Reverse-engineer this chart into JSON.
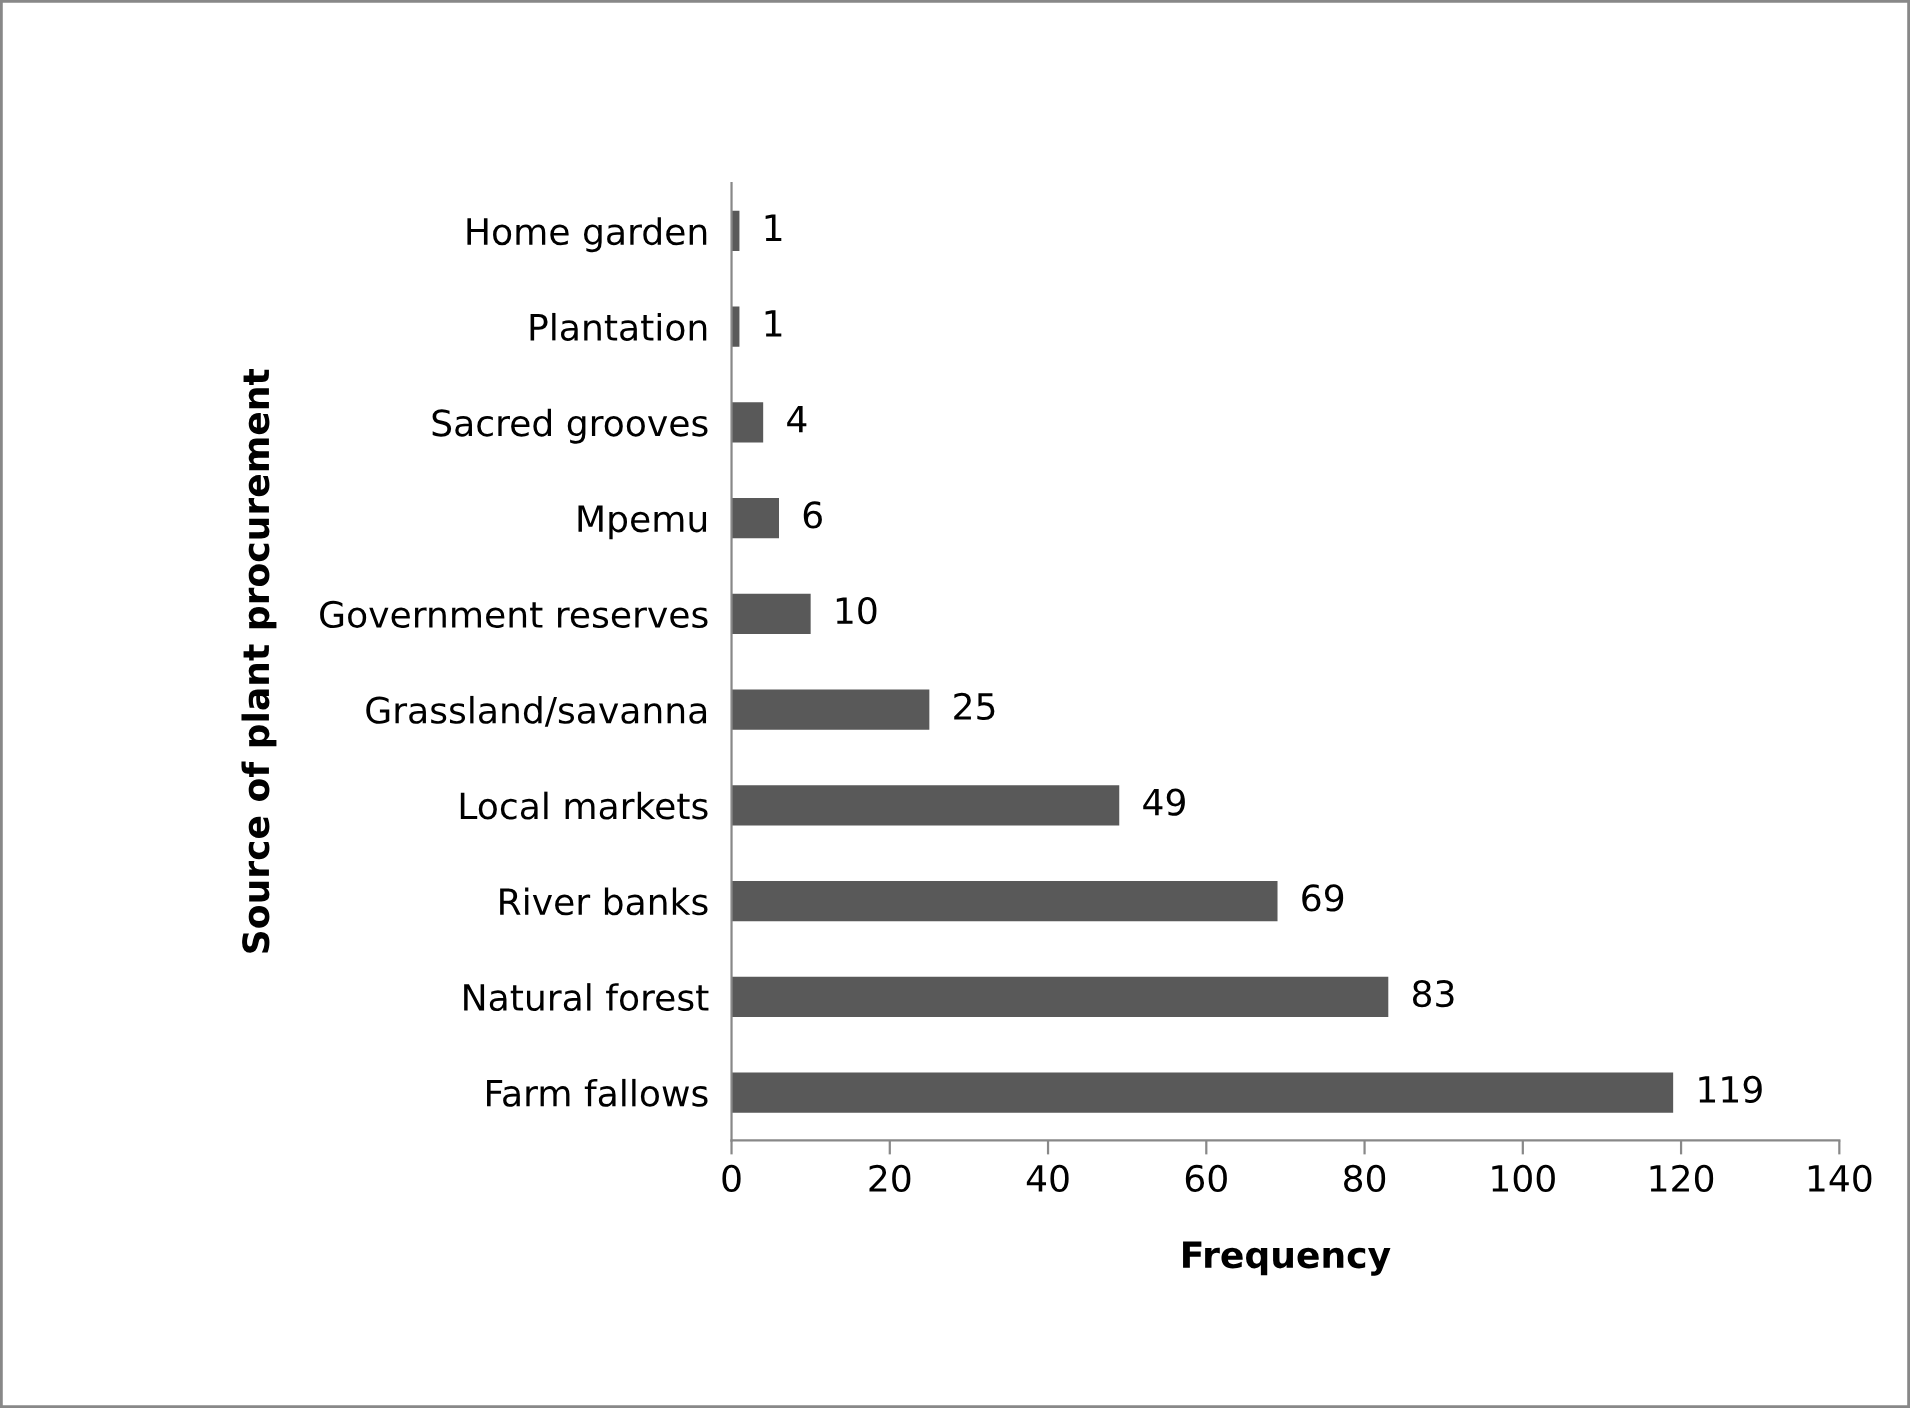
{
  "chart_data": {
    "type": "bar",
    "orientation": "horizontal",
    "xlabel": "Frequency",
    "ylabel": "Source of plant procurement",
    "categories": [
      "Home garden",
      "Plantation",
      "Sacred grooves",
      "Mpemu",
      "Government reserves",
      "Grassland/savanna",
      "Local markets",
      "River banks",
      "Natural forest",
      "Farm fallows"
    ],
    "values": [
      1,
      1,
      4,
      6,
      10,
      25,
      49,
      69,
      83,
      119
    ],
    "color": "#595959",
    "xlim": [
      0,
      140
    ],
    "xticks": [
      0,
      20,
      40,
      60,
      80,
      100,
      120,
      140
    ],
    "data_labels": true,
    "grid": false,
    "legend": false
  }
}
